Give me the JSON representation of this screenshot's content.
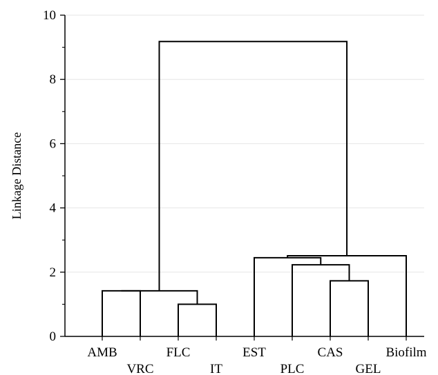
{
  "chart_data": {
    "type": "dendrogram",
    "title": "",
    "xlabel": "",
    "ylabel": "Linkage Distance",
    "ylim": [
      0,
      10
    ],
    "yticks": [
      "0",
      "2",
      "4",
      "6",
      "8",
      "10"
    ],
    "minor_ticks": true,
    "grid": "horizontal",
    "leaves": [
      "AMB",
      "VRC",
      "FLC",
      "IT",
      "EST",
      "PLC",
      "CAS",
      "GEL",
      "Biofilm"
    ],
    "merges": [
      {
        "left": "FLC",
        "right": "IT",
        "height": 1.0
      },
      {
        "left": "AMB",
        "right": "VRC",
        "height": 1.42
      },
      {
        "left": "AMB+VRC",
        "right": "FLC+IT",
        "height": 1.42
      },
      {
        "left": "CAS",
        "right": "GEL",
        "height": 1.73
      },
      {
        "left": "PLC",
        "right": "CAS+GEL",
        "height": 2.23
      },
      {
        "left": "EST",
        "right": "PLC+CAS+GEL",
        "height": 2.45
      },
      {
        "left": "EST+PLC+CAS+GEL",
        "right": "Biofilm",
        "height": 2.51
      },
      {
        "left": "AMB+VRC+FLC+IT",
        "right": "EST+PLC+CAS+GEL+Biofilm",
        "height": 9.18
      }
    ]
  }
}
